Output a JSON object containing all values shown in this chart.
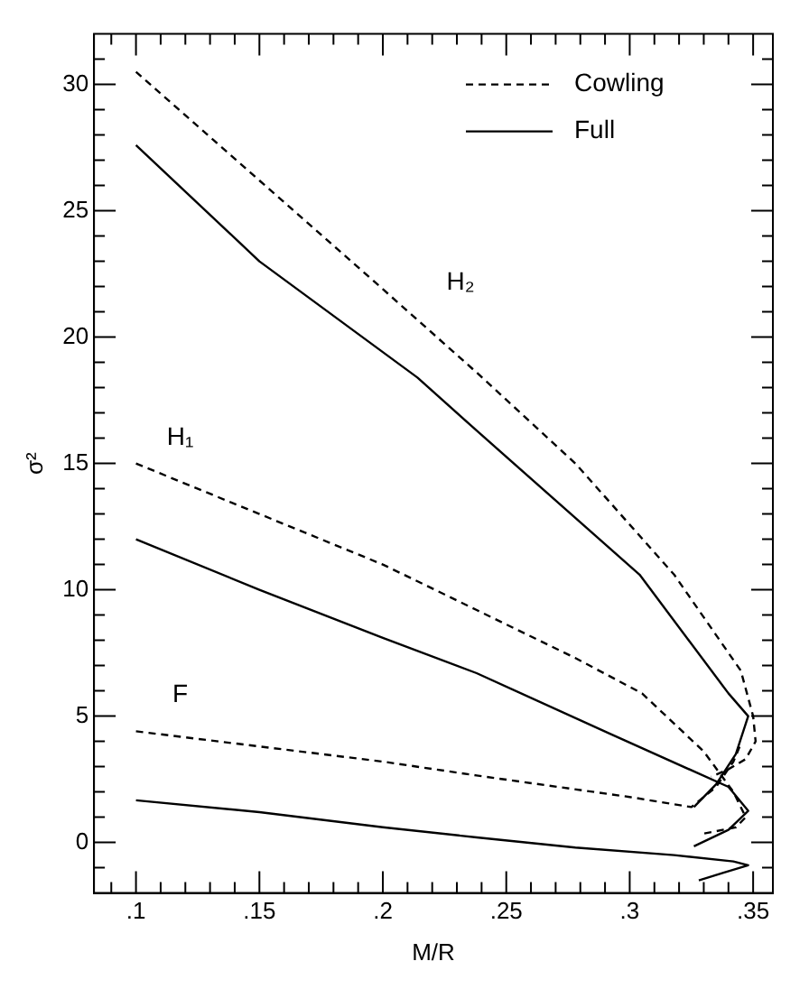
{
  "chart_data": {
    "type": "line",
    "xlabel": "M/R",
    "ylabel": "σ²",
    "xlim": [
      0.083,
      0.358
    ],
    "ylim": [
      -2,
      32
    ],
    "xticks": [
      {
        "value": 0.09,
        "label": null
      },
      {
        "value": 0.1,
        "label": ".1"
      },
      {
        "value": 0.11,
        "label": null
      },
      {
        "value": 0.12,
        "label": null
      },
      {
        "value": 0.13,
        "label": null
      },
      {
        "value": 0.14,
        "label": null
      },
      {
        "value": 0.15,
        "label": ".15"
      },
      {
        "value": 0.16,
        "label": null
      },
      {
        "value": 0.17,
        "label": null
      },
      {
        "value": 0.18,
        "label": null
      },
      {
        "value": 0.19,
        "label": null
      },
      {
        "value": 0.2,
        "label": ".2"
      },
      {
        "value": 0.21,
        "label": null
      },
      {
        "value": 0.22,
        "label": null
      },
      {
        "value": 0.23,
        "label": null
      },
      {
        "value": 0.24,
        "label": null
      },
      {
        "value": 0.25,
        "label": ".25"
      },
      {
        "value": 0.26,
        "label": null
      },
      {
        "value": 0.27,
        "label": null
      },
      {
        "value": 0.28,
        "label": null
      },
      {
        "value": 0.29,
        "label": null
      },
      {
        "value": 0.3,
        "label": ".3"
      },
      {
        "value": 0.31,
        "label": null
      },
      {
        "value": 0.32,
        "label": null
      },
      {
        "value": 0.33,
        "label": null
      },
      {
        "value": 0.34,
        "label": null
      },
      {
        "value": 0.35,
        "label": ".35"
      }
    ],
    "yticks": [
      {
        "value": -1,
        "label": null
      },
      0,
      {
        "value": 1,
        "label": null
      },
      {
        "value": 2,
        "label": null
      },
      {
        "value": 3,
        "label": null
      },
      {
        "value": 4,
        "label": null
      },
      5,
      {
        "value": 6,
        "label": null
      },
      {
        "value": 7,
        "label": null
      },
      {
        "value": 8,
        "label": null
      },
      {
        "value": 9,
        "label": null
      },
      10,
      {
        "value": 11,
        "label": null
      },
      {
        "value": 12,
        "label": null
      },
      {
        "value": 13,
        "label": null
      },
      {
        "value": 14,
        "label": null
      },
      15,
      {
        "value": 16,
        "label": null
      },
      {
        "value": 17,
        "label": null
      },
      {
        "value": 18,
        "label": null
      },
      {
        "value": 19,
        "label": null
      },
      20,
      {
        "value": 21,
        "label": null
      },
      {
        "value": 22,
        "label": null
      },
      {
        "value": 23,
        "label": null
      },
      {
        "value": 24,
        "label": null
      },
      25,
      {
        "value": 26,
        "label": null
      },
      {
        "value": 27,
        "label": null
      },
      {
        "value": 28,
        "label": null
      },
      {
        "value": 29,
        "label": null
      },
      30,
      {
        "value": 31,
        "label": null
      }
    ],
    "legend": "top right",
    "marker": "none",
    "series": [
      {
        "name": "Cowling",
        "color": "#000000",
        "line_style": "dashed",
        "x": [
          0.1,
          0.15,
          0.2,
          0.238,
          0.278,
          0.318,
          0.345,
          0.35,
          0.351,
          0.347,
          0.34,
          0.333
        ],
        "values": [
          30.5,
          26.2,
          21.9,
          18.6,
          15.0,
          10.6,
          6.8,
          5.0,
          4.0,
          3.3,
          2.9,
          2.6
        ]
      },
      {
        "name": "Full",
        "color": "#000000",
        "line_style": "solid",
        "x": [
          0.1,
          0.15,
          0.214,
          0.238,
          0.304,
          0.34,
          0.348,
          0.343,
          0.335,
          0.326
        ],
        "values": [
          27.6,
          23.0,
          18.4,
          16.3,
          10.6,
          5.9,
          5.0,
          3.5,
          2.3,
          1.4
        ]
      },
      {
        "color": "#000000",
        "line_style": "dashed",
        "x": [
          0.1,
          0.15,
          0.2,
          0.238,
          0.278,
          0.305,
          0.33,
          0.342,
          0.347,
          0.343,
          0.33
        ],
        "values": [
          15.0,
          13.0,
          11.0,
          9.2,
          7.3,
          5.9,
          3.6,
          2.0,
          1.0,
          0.6,
          0.35
        ]
      },
      {
        "color": "#000000",
        "line_style": "solid",
        "x": [
          0.1,
          0.15,
          0.2,
          0.238,
          0.292,
          0.34,
          0.348,
          0.34,
          0.326
        ],
        "values": [
          12.0,
          10.0,
          8.1,
          6.7,
          4.3,
          2.2,
          1.25,
          0.5,
          -0.15
        ]
      },
      {
        "color": "#000000",
        "line_style": "dashed",
        "x": [
          0.1,
          0.15,
          0.2,
          0.238,
          0.3,
          0.325,
          0.335,
          0.342,
          0.345
        ],
        "values": [
          4.4,
          3.8,
          3.2,
          2.65,
          1.8,
          1.4,
          2.2,
          3.2,
          3.9
        ]
      },
      {
        "color": "#000000",
        "line_style": "solid",
        "x": [
          0.1,
          0.15,
          0.2,
          0.238,
          0.278,
          0.318,
          0.342,
          0.348,
          0.338,
          0.328
        ],
        "values": [
          1.67,
          1.2,
          0.6,
          0.2,
          -0.2,
          -0.5,
          -0.75,
          -0.9,
          -1.2,
          -1.5
        ]
      }
    ],
    "annotations": [
      "H₂",
      "H₁",
      "F"
    ]
  }
}
